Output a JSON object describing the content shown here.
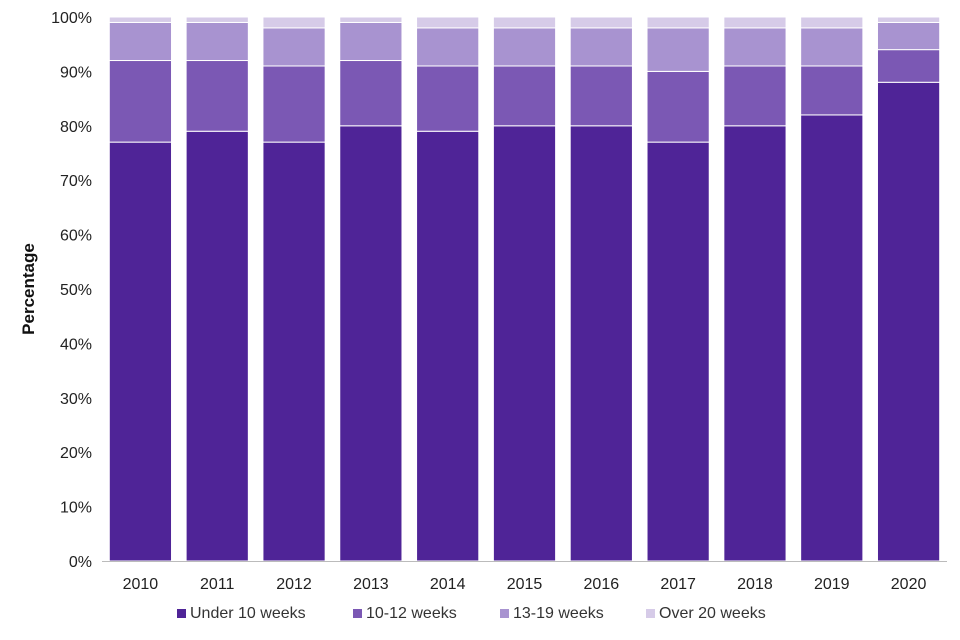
{
  "chart_data": {
    "type": "bar",
    "stacked": true,
    "ylabel": "Percentage",
    "xlabel": "",
    "ylim": [
      0,
      100
    ],
    "y_ticks": [
      "0%",
      "10%",
      "20%",
      "30%",
      "40%",
      "50%",
      "60%",
      "70%",
      "80%",
      "90%",
      "100%"
    ],
    "grid": false,
    "legend_position": "bottom",
    "categories": [
      "2010",
      "2011",
      "2012",
      "2013",
      "2014",
      "2015",
      "2016",
      "2017",
      "2018",
      "2019",
      "2020"
    ],
    "series": [
      {
        "name": "Under 10 weeks",
        "color": "#4f2497",
        "values": [
          77,
          79,
          77,
          80,
          79,
          80,
          80,
          77,
          80,
          82,
          88
        ]
      },
      {
        "name": "10-12 weeks",
        "color": "#7b58b4",
        "values": [
          15,
          13,
          14,
          12,
          12,
          11,
          11,
          13,
          11,
          9,
          6
        ]
      },
      {
        "name": "13-19 weeks",
        "color": "#a893d0",
        "values": [
          7,
          7,
          7,
          7,
          7,
          7,
          7,
          8,
          7,
          7,
          5
        ]
      },
      {
        "name": "Over 20 weeks",
        "color": "#d6cbe8",
        "values": [
          1,
          1,
          2,
          1,
          2,
          2,
          2,
          2,
          2,
          2,
          1
        ]
      }
    ]
  }
}
